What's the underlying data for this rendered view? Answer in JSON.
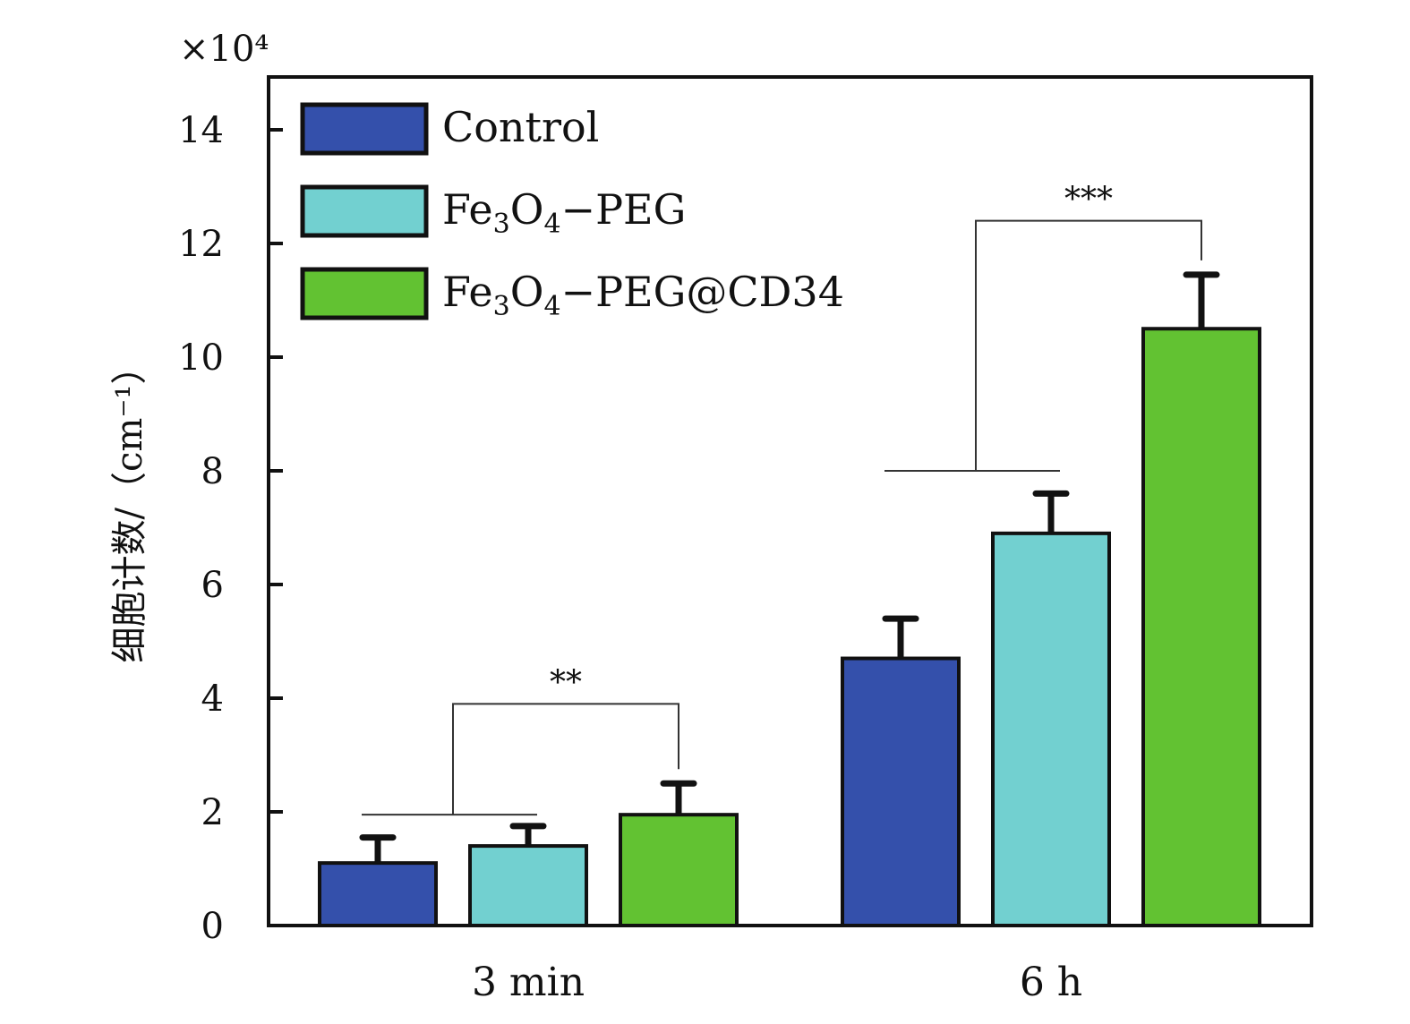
{
  "chart_data": {
    "type": "bar",
    "categories": [
      "3 min",
      "6 h"
    ],
    "series": [
      {
        "name": "Control",
        "values": [
          1.1,
          4.7
        ],
        "errors": [
          0.45,
          0.7
        ],
        "color": "#3450ab"
      },
      {
        "name": "Fe3O4−PEG",
        "values": [
          1.4,
          6.9
        ],
        "errors": [
          0.35,
          0.7
        ],
        "color": "#72d0d0"
      },
      {
        "name": "Fe3O4−PEG@CD34",
        "values": [
          1.95,
          10.5
        ],
        "errors": [
          0.55,
          0.95
        ],
        "color": "#62c232"
      }
    ],
    "legend": [
      {
        "main": "Control",
        "parts": [
          {
            "t": "Control",
            "sub": false
          }
        ]
      },
      {
        "main": "Fe3O4−PEG",
        "parts": [
          {
            "t": "Fe",
            "sub": false
          },
          {
            "t": "3",
            "sub": true
          },
          {
            "t": "O",
            "sub": false
          },
          {
            "t": "4",
            "sub": true
          },
          {
            "t": "−PEG",
            "sub": false
          }
        ]
      },
      {
        "main": "Fe3O4−PEG@CD34",
        "parts": [
          {
            "t": "Fe",
            "sub": false
          },
          {
            "t": "3",
            "sub": true
          },
          {
            "t": "O",
            "sub": false
          },
          {
            "t": "4",
            "sub": true
          },
          {
            "t": "−PEG@CD34",
            "sub": false
          }
        ]
      }
    ],
    "ylabel": "细胞计数/（cm⁻¹）",
    "y_multiplier": "×10⁴",
    "ylim": [
      0,
      15.5
    ],
    "yticks": [
      0,
      2,
      4,
      6,
      8,
      10,
      12,
      14
    ],
    "legend_position": "top-left",
    "grid": false,
    "significance": [
      {
        "label": "**",
        "category": 0,
        "y_line": 3.9,
        "y_bracket": 1.95
      },
      {
        "label": "***",
        "category": 1,
        "y_line": 12.4,
        "y_bracket": 8.0
      }
    ]
  }
}
